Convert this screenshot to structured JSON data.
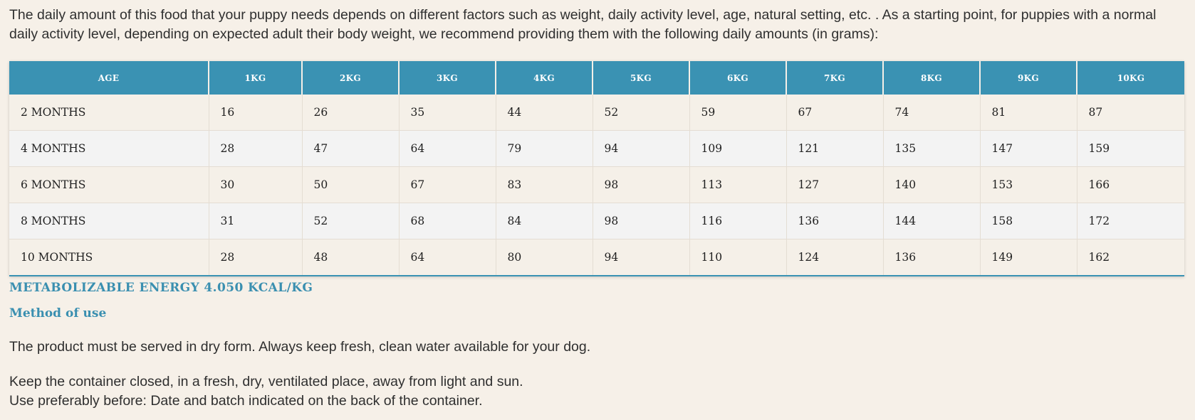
{
  "intro": "The daily amount of this food that your puppy needs depends on different factors such as weight, daily activity level, age, natural setting, etc. . As a starting point, for puppies with a normal daily activity level, depending on expected adult their body weight, we recommend providing them with the following daily amounts (in grams):",
  "table": {
    "headers": [
      "AGE",
      "1KG",
      "2KG",
      "3KG",
      "4KG",
      "5KG",
      "6KG",
      "7KG",
      "8KG",
      "9KG",
      "10KG"
    ],
    "rows": [
      [
        "2 MONTHS",
        "16",
        "26",
        "35",
        "44",
        "52",
        "59",
        "67",
        "74",
        "81",
        "87"
      ],
      [
        "4 MONTHS",
        "28",
        "47",
        "64",
        "79",
        "94",
        "109",
        "121",
        "135",
        "147",
        "159"
      ],
      [
        "6 MONTHS",
        "30",
        "50",
        "67",
        "83",
        "98",
        "113",
        "127",
        "140",
        "153",
        "166"
      ],
      [
        "8 MONTHS",
        "31",
        "52",
        "68",
        "84",
        "98",
        "116",
        "136",
        "144",
        "158",
        "172"
      ],
      [
        "10 MONTHS",
        "28",
        "48",
        "64",
        "80",
        "94",
        "110",
        "124",
        "136",
        "149",
        "162"
      ]
    ]
  },
  "energy": "METABOLIZABLE ENERGY 4.050 KCAL/KG",
  "method_title": "Method of use",
  "method_text": "The product must be served in dry form. Always keep fresh, clean water available for your dog.",
  "storage_line1": "Keep the container closed, in a fresh, dry, ventilated place, away from light and sun.",
  "storage_line2": "Use preferably before: Date and batch indicated on the back of the container.",
  "colors": {
    "header_bg": "#3a92b3",
    "accent_text": "#3a8fb0",
    "page_bg": "#f6f0e8"
  }
}
